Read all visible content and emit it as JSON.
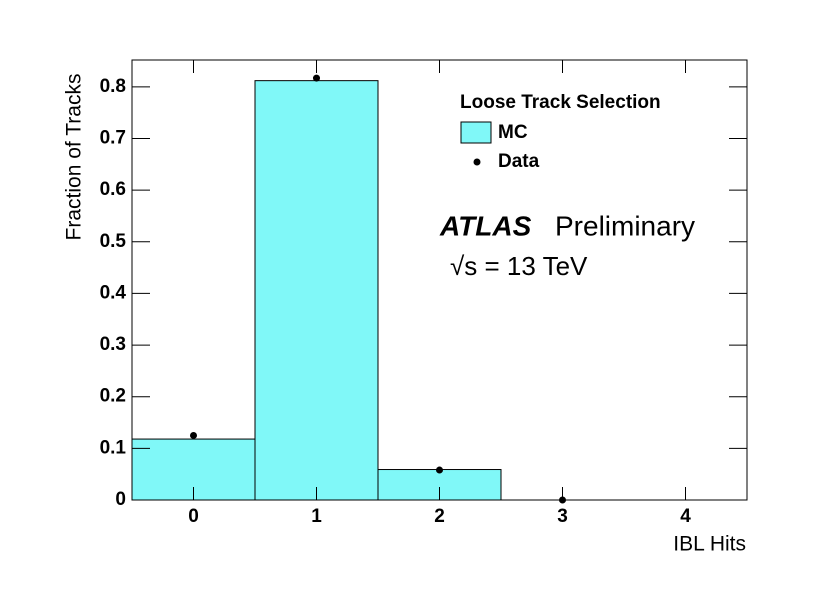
{
  "chart_data": {
    "type": "histogram",
    "xlabel": "IBL Hits",
    "ylabel": "Fraction of Tracks",
    "legend_title": "Loose Track Selection",
    "annotations": [
      "ATLAS",
      "Preliminary",
      "√s = 13 TeV"
    ],
    "bins": [
      -0.5,
      0.5,
      1.5,
      2.5,
      3.5,
      4.5
    ],
    "series": [
      {
        "name": "MC",
        "color": "#80f8f8",
        "values": [
          0.118,
          0.812,
          0.059,
          0,
          0
        ]
      },
      {
        "name": "Data",
        "color": "#000000",
        "values": [
          0.125,
          0.817,
          0.058,
          0,
          null
        ]
      }
    ],
    "xlim": [
      -0.5,
      4.5
    ],
    "ylim": [
      0,
      0.852
    ],
    "xticks": [
      0,
      1,
      2,
      3,
      4
    ],
    "yticks": [
      0,
      0.1,
      0.2,
      0.3,
      0.4,
      0.5,
      0.6,
      0.7,
      0.8
    ]
  }
}
